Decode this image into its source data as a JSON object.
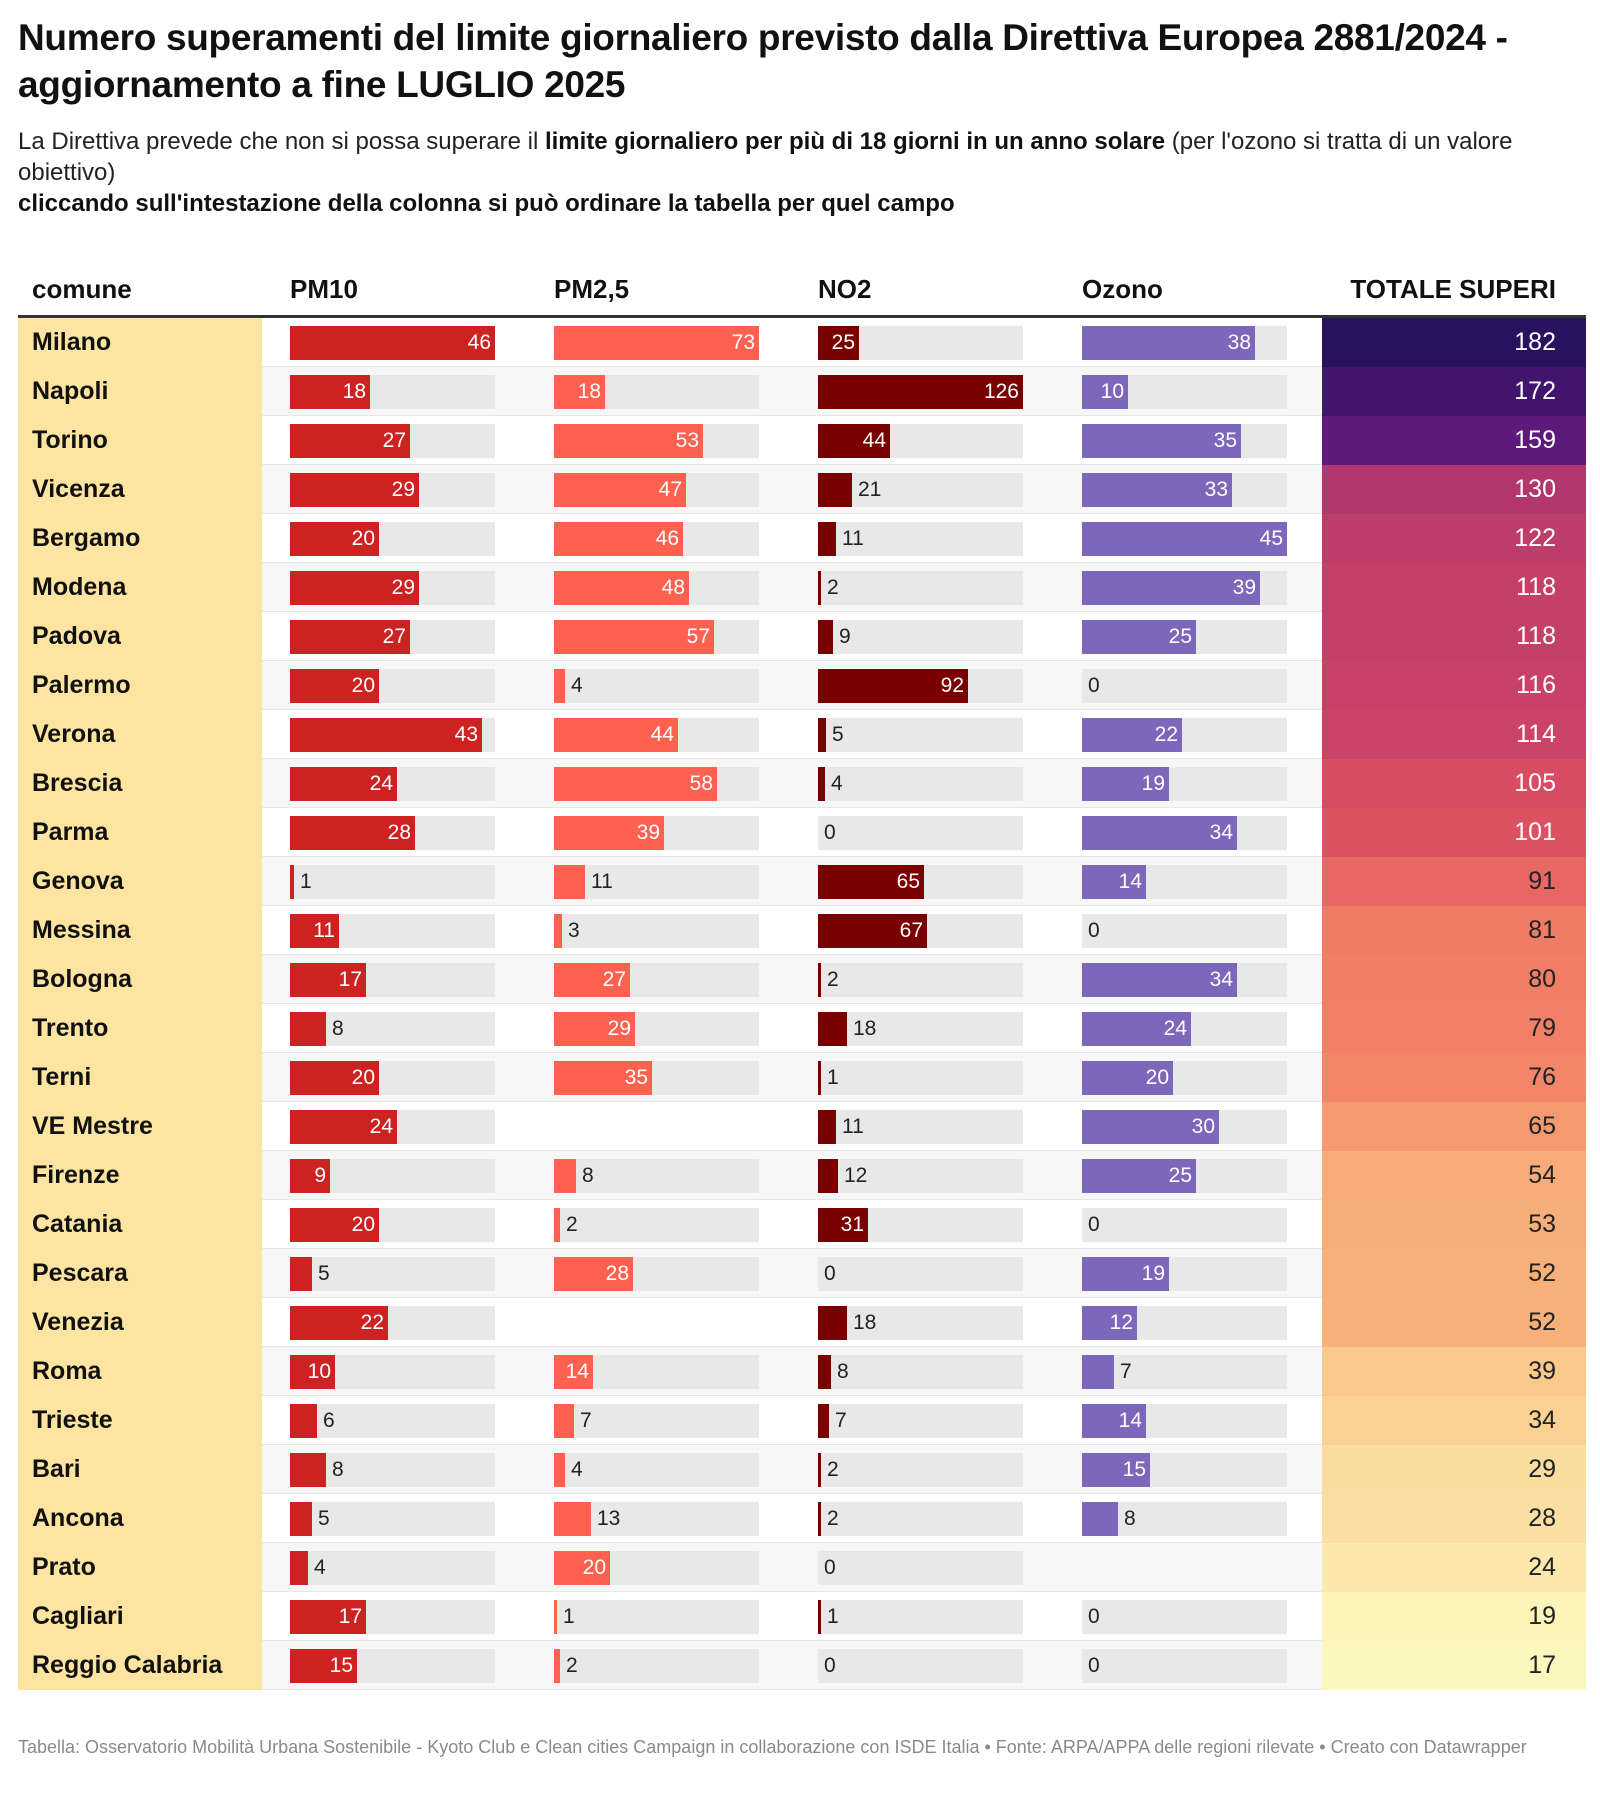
{
  "title": "Numero superamenti del limite giornaliero previsto dalla Direttiva Europea 2881/2024 - aggiornamento a fine LUGLIO 2025",
  "description": {
    "part1": "La Direttiva prevede che non si possa superare il ",
    "bold": "limite giornaliero per più di 18 giorni in un anno solare",
    "part2": " (per l'ozono si tratta di un valore obiettivo)"
  },
  "hint": "cliccando sull'intestazione della colonna si può ordinare la tabella per quel campo",
  "footer": "Tabella: Osservatorio Mobilità Urbana Sostenibile - Kyoto Club e Clean cities Campaign in collaborazione con ISDE Italia • Fonte: ARPA/APPA delle regioni rilevate • Creato con Datawrapper",
  "colors": {
    "pm10": "#cc2222",
    "pm25": "#ff6150",
    "no2": "#7a0000",
    "ozono": "#7d67bb",
    "track": "#e8e8e8",
    "name_bg": "#fde4a0"
  },
  "chart_data": {
    "type": "table",
    "columns": [
      "comune",
      "PM10",
      "PM2,5",
      "NO2",
      "Ozono",
      "TOTALE SUPERI"
    ],
    "scale_max": {
      "PM10": 46,
      "PM2,5": 73,
      "NO2": 126,
      "Ozono": 45
    },
    "rows": [
      {
        "comune": "Milano",
        "pm10": 46,
        "pm25": 73,
        "no2": 25,
        "ozono": 38,
        "totale": 182
      },
      {
        "comune": "Napoli",
        "pm10": 18,
        "pm25": 18,
        "no2": 126,
        "ozono": 10,
        "totale": 172
      },
      {
        "comune": "Torino",
        "pm10": 27,
        "pm25": 53,
        "no2": 44,
        "ozono": 35,
        "totale": 159
      },
      {
        "comune": "Vicenza",
        "pm10": 29,
        "pm25": 47,
        "no2": 21,
        "ozono": 33,
        "totale": 130
      },
      {
        "comune": "Bergamo",
        "pm10": 20,
        "pm25": 46,
        "no2": 11,
        "ozono": 45,
        "totale": 122
      },
      {
        "comune": "Modena",
        "pm10": 29,
        "pm25": 48,
        "no2": 2,
        "ozono": 39,
        "totale": 118
      },
      {
        "comune": "Padova",
        "pm10": 27,
        "pm25": 57,
        "no2": 9,
        "ozono": 25,
        "totale": 118
      },
      {
        "comune": "Palermo",
        "pm10": 20,
        "pm25": 4,
        "no2": 92,
        "ozono": 0,
        "totale": 116
      },
      {
        "comune": "Verona",
        "pm10": 43,
        "pm25": 44,
        "no2": 5,
        "ozono": 22,
        "totale": 114
      },
      {
        "comune": "Brescia",
        "pm10": 24,
        "pm25": 58,
        "no2": 4,
        "ozono": 19,
        "totale": 105
      },
      {
        "comune": "Parma",
        "pm10": 28,
        "pm25": 39,
        "no2": 0,
        "ozono": 34,
        "totale": 101
      },
      {
        "comune": "Genova",
        "pm10": 1,
        "pm25": 11,
        "no2": 65,
        "ozono": 14,
        "totale": 91
      },
      {
        "comune": "Messina",
        "pm10": 11,
        "pm25": 3,
        "no2": 67,
        "ozono": 0,
        "totale": 81
      },
      {
        "comune": "Bologna",
        "pm10": 17,
        "pm25": 27,
        "no2": 2,
        "ozono": 34,
        "totale": 80
      },
      {
        "comune": "Trento",
        "pm10": 8,
        "pm25": 29,
        "no2": 18,
        "ozono": 24,
        "totale": 79
      },
      {
        "comune": "Terni",
        "pm10": 20,
        "pm25": 35,
        "no2": 1,
        "ozono": 20,
        "totale": 76
      },
      {
        "comune": "VE Mestre",
        "pm10": 24,
        "pm25": null,
        "no2": 11,
        "ozono": 30,
        "totale": 65
      },
      {
        "comune": "Firenze",
        "pm10": 9,
        "pm25": 8,
        "no2": 12,
        "ozono": 25,
        "totale": 54
      },
      {
        "comune": "Catania",
        "pm10": 20,
        "pm25": 2,
        "no2": 31,
        "ozono": 0,
        "totale": 53
      },
      {
        "comune": "Pescara",
        "pm10": 5,
        "pm25": 28,
        "no2": 0,
        "ozono": 19,
        "totale": 52
      },
      {
        "comune": "Venezia",
        "pm10": 22,
        "pm25": null,
        "no2": 18,
        "ozono": 12,
        "totale": 52
      },
      {
        "comune": "Roma",
        "pm10": 10,
        "pm25": 14,
        "no2": 8,
        "ozono": 7,
        "totale": 39
      },
      {
        "comune": "Trieste",
        "pm10": 6,
        "pm25": 7,
        "no2": 7,
        "ozono": 14,
        "totale": 34
      },
      {
        "comune": "Bari",
        "pm10": 8,
        "pm25": 4,
        "no2": 2,
        "ozono": 15,
        "totale": 29
      },
      {
        "comune": "Ancona",
        "pm10": 5,
        "pm25": 13,
        "no2": 2,
        "ozono": 8,
        "totale": 28
      },
      {
        "comune": "Prato",
        "pm10": 4,
        "pm25": 20,
        "no2": 0,
        "ozono": null,
        "totale": 24
      },
      {
        "comune": "Cagliari",
        "pm10": 17,
        "pm25": 1,
        "no2": 1,
        "ozono": 0,
        "totale": 19
      },
      {
        "comune": "Reggio Calabria",
        "pm10": 15,
        "pm25": 2,
        "no2": 0,
        "ozono": 0,
        "totale": 17
      }
    ],
    "totale_color_scale": [
      {
        "value": 182,
        "color": "#2a1160"
      },
      {
        "value": 159,
        "color": "#5e1a7a"
      },
      {
        "value": 130,
        "color": "#b3376f"
      },
      {
        "value": 105,
        "color": "#d94a63"
      },
      {
        "value": 80,
        "color": "#f27e66"
      },
      {
        "value": 52,
        "color": "#f8b07a"
      },
      {
        "value": 34,
        "color": "#fbd293"
      },
      {
        "value": 17,
        "color": "#fcf8bd"
      }
    ]
  }
}
